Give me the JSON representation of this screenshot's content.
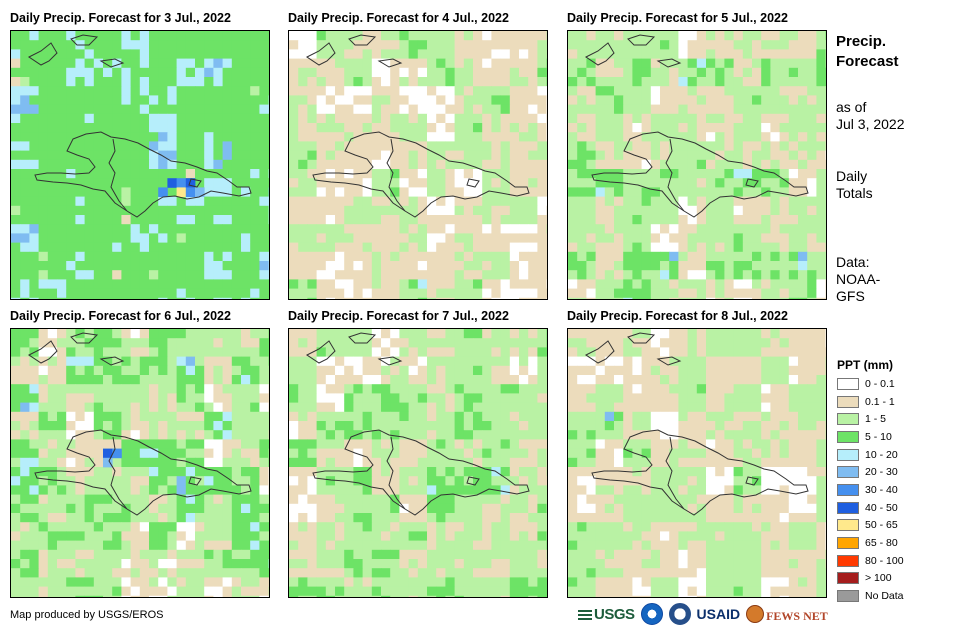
{
  "panels": [
    {
      "title": "Daily Precip. Forecast for 3 Jul., 2022",
      "day": 0
    },
    {
      "title": "Daily Precip. Forecast for 4 Jul., 2022",
      "day": 1
    },
    {
      "title": "Daily Precip. Forecast for 5 Jul., 2022",
      "day": 2
    },
    {
      "title": "Daily Precip. Forecast for 6 Jul., 2022",
      "day": 3
    },
    {
      "title": "Daily Precip. Forecast for 7 Jul., 2022",
      "day": 4
    },
    {
      "title": "Daily Precip. Forecast for 8 Jul., 2022",
      "day": 5
    }
  ],
  "side": {
    "title_line1": "Precip.",
    "title_line2": "Forecast",
    "asof_line1": "as of",
    "asof_line2": "Jul 3, 2022",
    "totals_line1": "Daily",
    "totals_line2": "Totals",
    "data_line1": "Data:",
    "data_line2": "NOAA-",
    "data_line3": "GFS"
  },
  "legend": {
    "title": "PPT (mm)",
    "items": [
      {
        "label": "0 - 0.1",
        "color": "#ffffff"
      },
      {
        "label": "0.1 - 1",
        "color": "#ecdcbc"
      },
      {
        "label": "1 - 5",
        "color": "#b9f2a4"
      },
      {
        "label": "5 - 10",
        "color": "#6de366"
      },
      {
        "label": "10 - 20",
        "color": "#b6eefb"
      },
      {
        "label": "20 - 30",
        "color": "#7fbcf1"
      },
      {
        "label": "30 - 40",
        "color": "#4590ef"
      },
      {
        "label": "40 - 50",
        "color": "#1f5fe0"
      },
      {
        "label": "50 - 65",
        "color": "#ffe98c"
      },
      {
        "label": "65 - 80",
        "color": "#ffa500"
      },
      {
        "label": "80 - 100",
        "color": "#ff3a00"
      },
      {
        "label": "> 100",
        "color": "#a51d1d"
      },
      {
        "label": "No Data",
        "color": "#9a9a9a"
      }
    ]
  },
  "credit": "Map produced by USGS/EROS",
  "logos": {
    "usgs": "USGS",
    "noaa": "noaa-logo",
    "dos": "dos-logo",
    "usaid": "USAID",
    "fews": "FEWS NET"
  }
}
